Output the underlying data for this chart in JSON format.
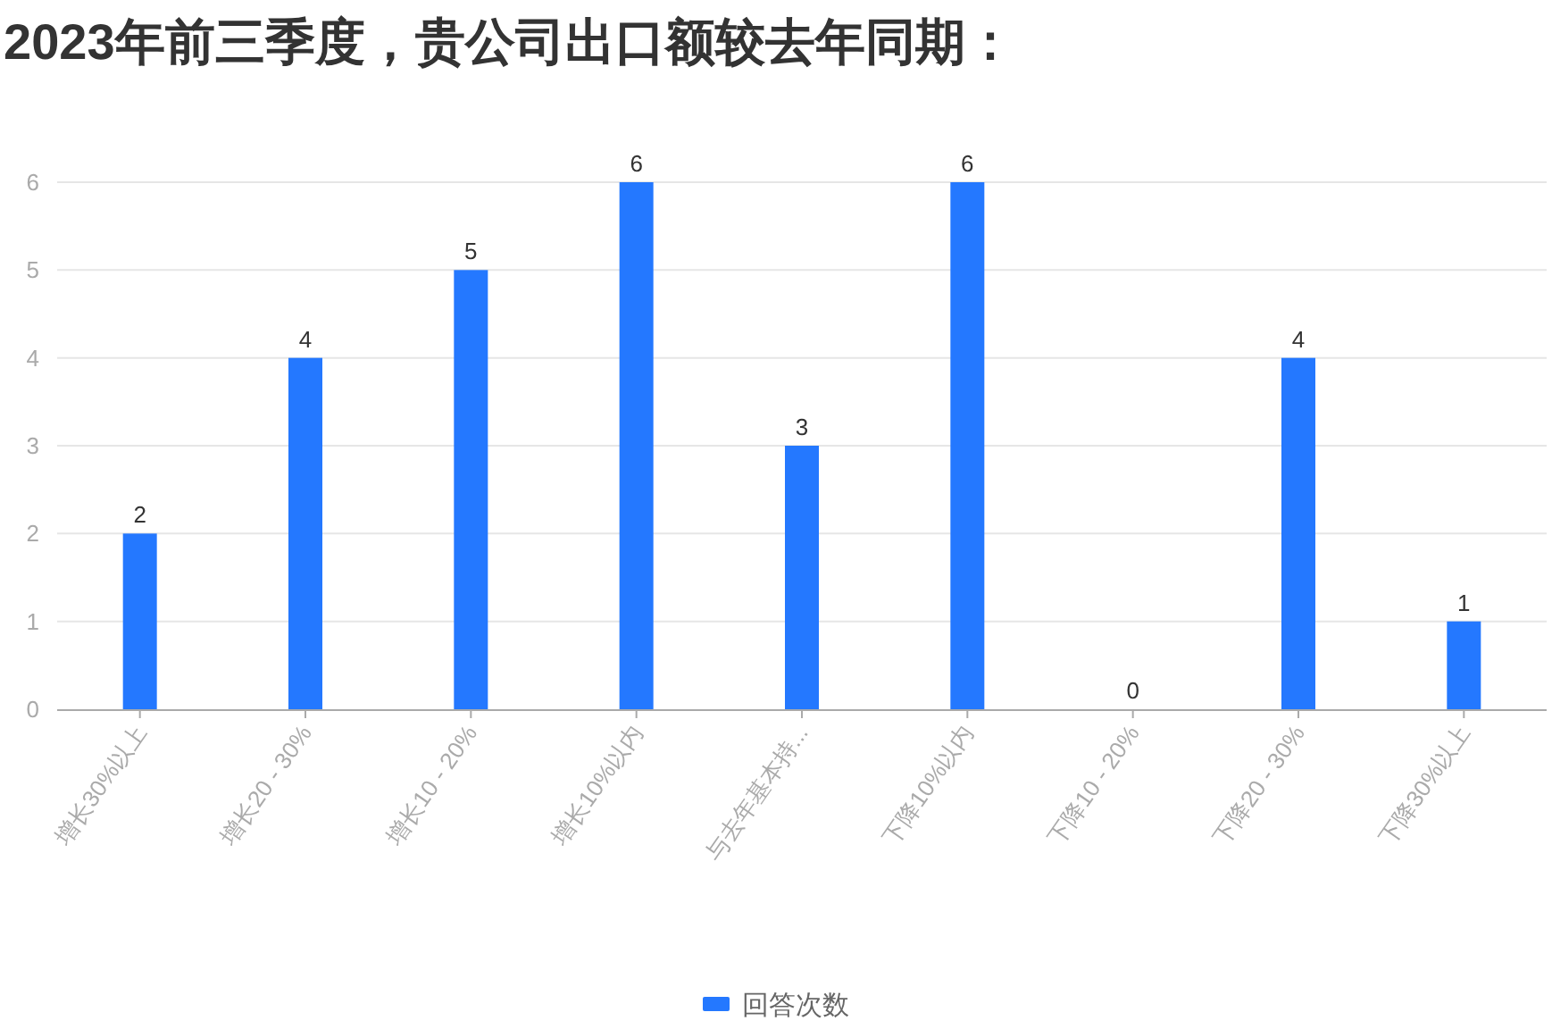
{
  "chart_data": {
    "type": "bar",
    "title": "2023年前三季度，贵公司出口额较去年同期：",
    "categories": [
      "增长30%以上",
      "增长20 - 30%",
      "增长10 - 20%",
      "增长10%以内",
      "与去年基本持...",
      "下降10%以内",
      "下降10 - 20%",
      "下降20 - 30%",
      "下降30%以上"
    ],
    "series": [
      {
        "name": "回答次数",
        "color": "#2478ff",
        "values": [
          2,
          4,
          5,
          6,
          3,
          6,
          0,
          4,
          1
        ]
      }
    ],
    "ylim": [
      0,
      6
    ],
    "yticks": [
      0,
      1,
      2,
      3,
      4,
      5,
      6
    ],
    "grid": "y",
    "legend": "bottom",
    "data_labels": true
  }
}
